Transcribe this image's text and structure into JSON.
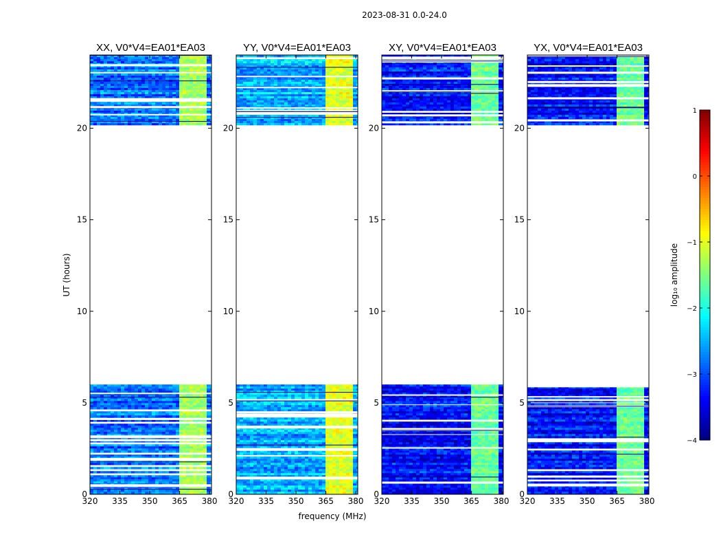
{
  "chart_data": {
    "type": "heatmap",
    "title": "2023-08-31 0.0-24.0",
    "xlabel": "frequency (MHz)",
    "ylabel": "UT (hours)",
    "xlim": [
      320,
      381
    ],
    "ylim": [
      0,
      24
    ],
    "xticks": [
      "320",
      "335",
      "350",
      "365",
      "380"
    ],
    "yticks": [
      "0",
      "5",
      "10",
      "15",
      "20"
    ],
    "colorbar": {
      "label": "log₁₀ amplitude",
      "range": [
        -4,
        1
      ],
      "ticks": [
        "1",
        "0",
        "−1",
        "−2",
        "−3",
        "−4"
      ],
      "colormap": "jet"
    },
    "data_blocks_ut": [
      [
        0,
        6.0
      ],
      [
        20.2,
        24.0
      ]
    ],
    "band_mhz": [
      364,
      378
    ],
    "panels": [
      {
        "title": "XX, V0*V4=EA01*EA03",
        "base_log_amp": -2.8,
        "band_log_amp": -1.3
      },
      {
        "title": "YY, V0*V4=EA01*EA03",
        "base_log_amp": -2.5,
        "band_log_amp": -1.0
      },
      {
        "title": "XY, V0*V4=EA01*EA03",
        "base_log_amp": -3.3,
        "band_log_amp": -1.6
      },
      {
        "title": "YX, V0*V4=EA01*EA03",
        "base_log_amp": -3.3,
        "band_log_amp": -1.6
      }
    ]
  }
}
